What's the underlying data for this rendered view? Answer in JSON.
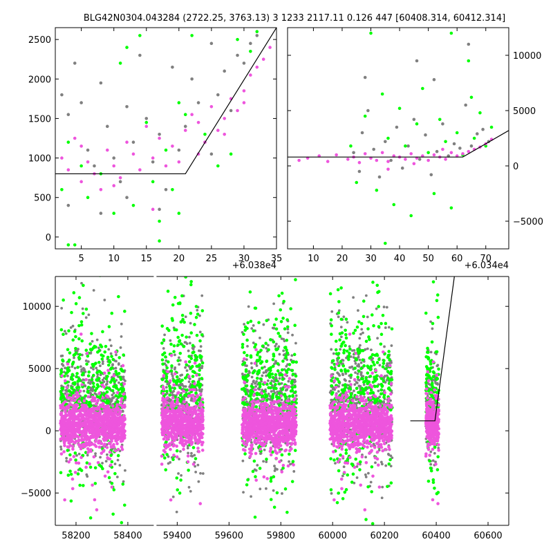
{
  "title": "BLG42N0304.043284 (2722.25, 3763.13)    3 1233 2117.11 0.126 447 [60408.314, 60412.314]",
  "colors": {
    "gray": "#808080",
    "green": "#00ff00",
    "magenta": "#ee55dd",
    "model": "#000000"
  },
  "chart_data": [
    {
      "name": "top-left-zoom",
      "type": "scatter",
      "x_offset_label": "+6.038e4",
      "xlim": [
        1,
        35
      ],
      "ylim": [
        -150,
        2650
      ],
      "x_ticks": [
        5,
        10,
        15,
        20,
        25,
        30,
        35
      ],
      "x_tick_labels": [
        "5",
        "10",
        "15",
        "20",
        "25",
        "30",
        "35"
      ],
      "y_ticks": [
        0,
        500,
        1000,
        1500,
        2000,
        2500
      ],
      "y_tick_labels": [
        "0",
        "500",
        "1000",
        "1500",
        "2000",
        "2500"
      ],
      "model_line": {
        "x": [
          1,
          21,
          35
        ],
        "y": [
          800,
          800,
          2650
        ]
      },
      "series": [
        {
          "color": "gray",
          "points": [
            [
              2,
              1800
            ],
            [
              3,
              1550
            ],
            [
              4,
              2200
            ],
            [
              5,
              1700
            ],
            [
              6,
              1100
            ],
            [
              7,
              900
            ],
            [
              8,
              1950
            ],
            [
              9,
              1400
            ],
            [
              10,
              1000
            ],
            [
              11,
              700
            ],
            [
              12,
              1650
            ],
            [
              13,
              1200
            ],
            [
              14,
              2300
            ],
            [
              15,
              1500
            ],
            [
              16,
              950
            ],
            [
              17,
              1300
            ],
            [
              18,
              600
            ],
            [
              19,
              2150
            ],
            [
              20,
              1100
            ],
            [
              21,
              1400
            ],
            [
              22,
              2000
            ],
            [
              23,
              1700
            ],
            [
              24,
              1200
            ],
            [
              25,
              2450
            ],
            [
              26,
              1800
            ],
            [
              27,
              2100
            ],
            [
              28,
              1600
            ],
            [
              29,
              2300
            ],
            [
              30,
              2200
            ],
            [
              31,
              2450
            ],
            [
              32,
              2550
            ],
            [
              3,
              400
            ],
            [
              8,
              300
            ],
            [
              12,
              500
            ],
            [
              17,
              350
            ],
            [
              25,
              1050
            ]
          ]
        },
        {
          "color": "green",
          "points": [
            [
              2,
              600
            ],
            [
              3,
              1200
            ],
            [
              4,
              -100
            ],
            [
              5,
              900
            ],
            [
              6,
              500
            ],
            [
              8,
              800
            ],
            [
              10,
              300
            ],
            [
              12,
              2400
            ],
            [
              13,
              400
            ],
            [
              15,
              1450
            ],
            [
              16,
              700
            ],
            [
              17,
              200
            ],
            [
              18,
              1100
            ],
            [
              19,
              600
            ],
            [
              20,
              300
            ],
            [
              21,
              1550
            ],
            [
              22,
              2550
            ],
            [
              24,
              1300
            ],
            [
              26,
              900
            ],
            [
              28,
              1050
            ],
            [
              29,
              2500
            ],
            [
              31,
              2350
            ],
            [
              32,
              2600
            ],
            [
              14,
              2550
            ],
            [
              20,
              1700
            ],
            [
              11,
              2200
            ],
            [
              3,
              -100
            ],
            [
              17,
              -50
            ]
          ]
        },
        {
          "color": "magenta",
          "points": [
            [
              2,
              1000
            ],
            [
              3,
              850
            ],
            [
              4,
              1250
            ],
            [
              5,
              700
            ],
            [
              6,
              950
            ],
            [
              7,
              800
            ],
            [
              8,
              600
            ],
            [
              9,
              1100
            ],
            [
              10,
              900
            ],
            [
              11,
              750
            ],
            [
              12,
              1200
            ],
            [
              13,
              1050
            ],
            [
              14,
              850
            ],
            [
              15,
              1400
            ],
            [
              16,
              1000
            ],
            [
              17,
              1250
            ],
            [
              18,
              900
            ],
            [
              19,
              1150
            ],
            [
              20,
              950
            ],
            [
              21,
              1350
            ],
            [
              22,
              1550
            ],
            [
              23,
              1450
            ],
            [
              24,
              1200
            ],
            [
              25,
              1650
            ],
            [
              26,
              1350
            ],
            [
              27,
              1500
            ],
            [
              28,
              1750
            ],
            [
              29,
              1600
            ],
            [
              30,
              1850
            ],
            [
              31,
              2050
            ],
            [
              32,
              2150
            ],
            [
              33,
              2250
            ],
            [
              34,
              2400
            ],
            [
              5,
              1150
            ],
            [
              10,
              650
            ],
            [
              16,
              350
            ],
            [
              23,
              1050
            ],
            [
              27,
              1300
            ],
            [
              30,
              1700
            ]
          ]
        }
      ]
    },
    {
      "name": "top-right-zoom",
      "type": "scatter",
      "x_offset_label": "+6.034e4",
      "xlim": [
        1,
        78
      ],
      "ylim": [
        -7500,
        12500
      ],
      "x_ticks": [
        10,
        20,
        30,
        40,
        50,
        60,
        70
      ],
      "x_tick_labels": [
        "10",
        "20",
        "30",
        "40",
        "50",
        "60",
        "70"
      ],
      "y_ticks": [
        -5000,
        0,
        5000,
        10000
      ],
      "y_tick_labels": [
        "−5000",
        "0",
        "5000",
        "10000"
      ],
      "model_line": {
        "x": [
          1,
          62,
          78
        ],
        "y": [
          800,
          800,
          3200
        ]
      },
      "series": [
        {
          "color": "gray",
          "points": [
            [
              24,
              1200
            ],
            [
              26,
              -500
            ],
            [
              27,
              3000
            ],
            [
              29,
              5000
            ],
            [
              31,
              1500
            ],
            [
              33,
              -1000
            ],
            [
              35,
              2200
            ],
            [
              37,
              500
            ],
            [
              39,
              3500
            ],
            [
              41,
              -200
            ],
            [
              43,
              1800
            ],
            [
              45,
              4200
            ],
            [
              47,
              600
            ],
            [
              49,
              2800
            ],
            [
              51,
              -800
            ],
            [
              53,
              1300
            ],
            [
              55,
              3800
            ],
            [
              57,
              900
            ],
            [
              59,
              2000
            ],
            [
              61,
              1600
            ],
            [
              63,
              5500
            ],
            [
              65,
              1800
            ],
            [
              67,
              2900
            ],
            [
              69,
              3300
            ],
            [
              71,
              2200
            ],
            [
              28,
              8000
            ],
            [
              46,
              9500
            ],
            [
              52,
              7800
            ],
            [
              64,
              11000
            ]
          ]
        },
        {
          "color": "green",
          "points": [
            [
              23,
              1800
            ],
            [
              25,
              -1500
            ],
            [
              28,
              4500
            ],
            [
              30,
              12000
            ],
            [
              32,
              -2200
            ],
            [
              34,
              6500
            ],
            [
              36,
              2500
            ],
            [
              38,
              -3500
            ],
            [
              40,
              5200
            ],
            [
              42,
              1800
            ],
            [
              44,
              -4500
            ],
            [
              46,
              3800
            ],
            [
              48,
              7000
            ],
            [
              50,
              1200
            ],
            [
              52,
              -2500
            ],
            [
              54,
              4200
            ],
            [
              56,
              2200
            ],
            [
              58,
              -3800
            ],
            [
              60,
              3000
            ],
            [
              62,
              1000
            ],
            [
              64,
              9500
            ],
            [
              66,
              2500
            ],
            [
              68,
              4800
            ],
            [
              70,
              1800
            ],
            [
              72,
              3500
            ],
            [
              35,
              -7000
            ],
            [
              58,
              12000
            ],
            [
              65,
              6200
            ]
          ]
        },
        {
          "color": "magenta",
          "points": [
            [
              5,
              500
            ],
            [
              8,
              700
            ],
            [
              12,
              900
            ],
            [
              15,
              400
            ],
            [
              18,
              1000
            ],
            [
              22,
              600
            ],
            [
              24,
              800
            ],
            [
              26,
              300
            ],
            [
              28,
              1100
            ],
            [
              30,
              700
            ],
            [
              32,
              500
            ],
            [
              34,
              1200
            ],
            [
              36,
              400
            ],
            [
              38,
              900
            ],
            [
              40,
              800
            ],
            [
              42,
              600
            ],
            [
              44,
              1100
            ],
            [
              46,
              700
            ],
            [
              48,
              900
            ],
            [
              50,
              500
            ],
            [
              52,
              1000
            ],
            [
              54,
              800
            ],
            [
              56,
              600
            ],
            [
              58,
              1200
            ],
            [
              60,
              900
            ],
            [
              62,
              1100
            ],
            [
              64,
              1300
            ],
            [
              66,
              1500
            ],
            [
              68,
              1700
            ],
            [
              70,
              2000
            ],
            [
              72,
              2400
            ],
            [
              36,
              -300
            ],
            [
              45,
              200
            ],
            [
              55,
              1500
            ]
          ]
        }
      ]
    },
    {
      "name": "bottom-full-lightcurve",
      "type": "scatter",
      "xlim": [
        58120,
        60680
      ],
      "ylim": [
        -7600,
        12400
      ],
      "x_ticks": [
        58200,
        58400,
        59400,
        59600,
        59800,
        60000,
        60200,
        60400,
        60600
      ],
      "x_tick_labels": [
        "58200",
        "58400",
        "59400",
        "59600",
        "59800",
        "60000",
        "60200",
        "60400",
        "60600"
      ],
      "y_ticks": [
        -5000,
        0,
        5000,
        10000
      ],
      "y_tick_labels": [
        "−5000",
        "0",
        "5000",
        "10000"
      ],
      "axis_break": {
        "from": 58500,
        "to": 59320
      },
      "model_line": {
        "x": [
          60300,
          60395,
          60470
        ],
        "y": [
          800,
          800,
          12400
        ]
      },
      "seasons": [
        {
          "start": 58140,
          "end": 58390,
          "center": 58270,
          "gray_sd": 2800,
          "green_sd": 4200
        },
        {
          "start": 59340,
          "end": 59500,
          "center": 59420,
          "gray_sd": 3200,
          "green_sd": 4500
        },
        {
          "start": 59650,
          "end": 59860,
          "center": 59760,
          "gray_sd": 3100,
          "green_sd": 4300
        },
        {
          "start": 59990,
          "end": 60230,
          "center": 60110,
          "gray_sd": 3400,
          "green_sd": 4600
        },
        {
          "start": 60360,
          "end": 60410,
          "center": 60385,
          "gray_sd": 2600,
          "green_sd": 3800
        }
      ],
      "magenta_level": 500,
      "magenta_sd": 900
    }
  ]
}
